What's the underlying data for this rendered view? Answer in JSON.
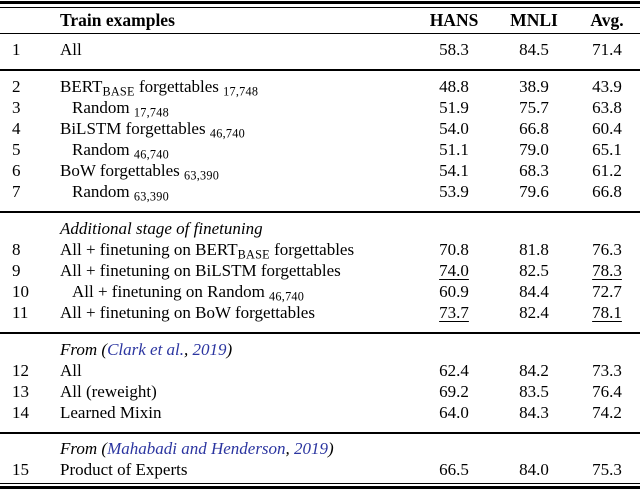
{
  "colors": {
    "citation_blue": "#2b35a0",
    "text": "#000000",
    "background": "#ffffff"
  },
  "header": {
    "label": "Train examples",
    "cols": [
      "HANS",
      "MNLI",
      "Avg."
    ]
  },
  "sections": [
    {
      "rows": [
        {
          "num": "1",
          "label": [
            {
              "t": "All"
            }
          ],
          "values": [
            "58.3",
            "84.5",
            "71.4"
          ]
        }
      ]
    },
    {
      "rows": [
        {
          "num": "2",
          "label": [
            {
              "t": "BERT"
            },
            {
              "t": "BASE",
              "sub": true
            },
            {
              "t": " forgettables "
            },
            {
              "t": "17,748",
              "sub": true
            }
          ],
          "values": [
            "48.8",
            "38.9",
            "43.9"
          ]
        },
        {
          "num": "3",
          "indent": true,
          "label": [
            {
              "t": "Random "
            },
            {
              "t": "17,748",
              "sub": true
            }
          ],
          "values": [
            "51.9",
            "75.7",
            "63.8"
          ]
        },
        {
          "num": "4",
          "label": [
            {
              "t": "BiLSTM forgettables "
            },
            {
              "t": "46,740",
              "sub": true
            }
          ],
          "values": [
            "54.0",
            "66.8",
            "60.4"
          ]
        },
        {
          "num": "5",
          "indent": true,
          "label": [
            {
              "t": "Random "
            },
            {
              "t": "46,740",
              "sub": true
            }
          ],
          "values": [
            "51.1",
            "79.0",
            "65.1"
          ]
        },
        {
          "num": "6",
          "label": [
            {
              "t": "BoW forgettables "
            },
            {
              "t": "63,390",
              "sub": true
            }
          ],
          "values": [
            "54.1",
            "68.3",
            "61.2"
          ]
        },
        {
          "num": "7",
          "indent": true,
          "label": [
            {
              "t": "Random "
            },
            {
              "t": "63,390",
              "sub": true
            }
          ],
          "values": [
            "53.9",
            "79.6",
            "66.8"
          ]
        }
      ]
    },
    {
      "heading": [
        {
          "t": "Additional stage of finetuning"
        }
      ],
      "rows": [
        {
          "num": "8",
          "label": [
            {
              "t": "All + finetuning on BERT"
            },
            {
              "t": "BASE",
              "sub": true
            },
            {
              "t": " forgettables"
            }
          ],
          "values": [
            "70.8",
            "81.8",
            "76.3"
          ]
        },
        {
          "num": "9",
          "label": [
            {
              "t": "All + finetuning on BiLSTM forgettables"
            }
          ],
          "values": [
            "74.0",
            "82.5",
            "78.3"
          ],
          "underline": [
            0,
            2
          ]
        },
        {
          "num": "10",
          "indent": true,
          "label": [
            {
              "t": "All + finetuning on Random "
            },
            {
              "t": "46,740",
              "sub": true
            }
          ],
          "values": [
            "60.9",
            "84.4",
            "72.7"
          ]
        },
        {
          "num": "11",
          "label": [
            {
              "t": "All + finetuning on BoW forgettables"
            }
          ],
          "values": [
            "73.7",
            "82.4",
            "78.1"
          ],
          "underline": [
            0,
            2
          ]
        }
      ]
    },
    {
      "heading": [
        {
          "t": "From ("
        },
        {
          "t": "Clark et al.",
          "link": true
        },
        {
          "t": ", "
        },
        {
          "t": "2019",
          "link": true
        },
        {
          "t": ")"
        }
      ],
      "rows": [
        {
          "num": "12",
          "label": [
            {
              "t": "All"
            }
          ],
          "values": [
            "62.4",
            "84.2",
            "73.3"
          ]
        },
        {
          "num": "13",
          "label": [
            {
              "t": "All (reweight)"
            }
          ],
          "values": [
            "69.2",
            "83.5",
            "76.4"
          ]
        },
        {
          "num": "14",
          "label": [
            {
              "t": "Learned Mixin"
            }
          ],
          "values": [
            "64.0",
            "84.3",
            "74.2"
          ]
        }
      ]
    },
    {
      "heading": [
        {
          "t": "From ("
        },
        {
          "t": "Mahabadi and Henderson",
          "link": true
        },
        {
          "t": ", "
        },
        {
          "t": "2019",
          "link": true
        },
        {
          "t": ")"
        }
      ],
      "rows": [
        {
          "num": "15",
          "label": [
            {
              "t": "Product of Experts"
            }
          ],
          "values": [
            "66.5",
            "84.0",
            "75.3"
          ]
        }
      ]
    }
  ]
}
